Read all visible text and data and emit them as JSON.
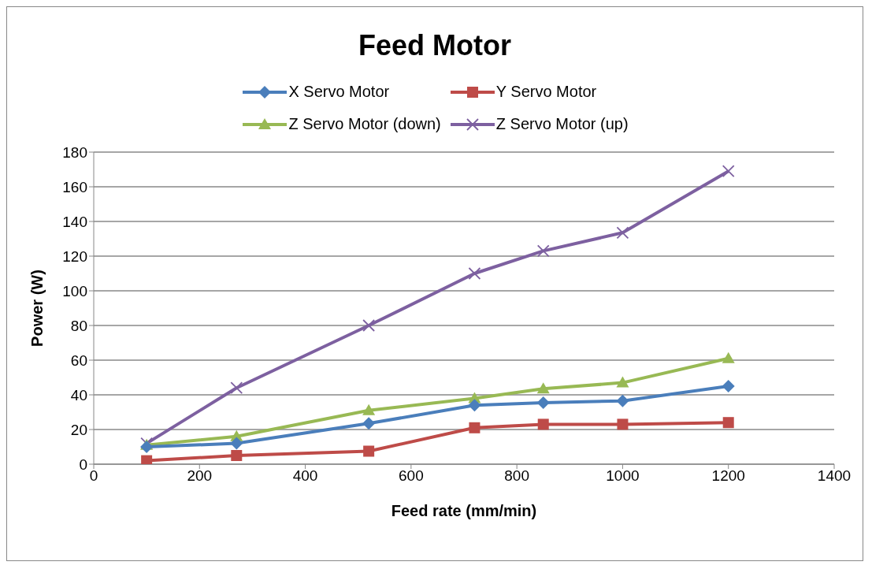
{
  "chart_data": {
    "type": "line",
    "title": "Feed Motor",
    "xlabel": "Feed rate (mm/min)",
    "ylabel": "Power (W)",
    "x": [
      100,
      270,
      520,
      720,
      850,
      1000,
      1200
    ],
    "series": [
      {
        "name": "X Servo Motor",
        "color": "#4a7ebb",
        "marker": "diamond",
        "values": [
          10,
          12,
          23.5,
          34,
          35.5,
          36.5,
          45
        ]
      },
      {
        "name": "Y Servo Motor",
        "color": "#be4b48",
        "marker": "square",
        "values": [
          2,
          5,
          7.5,
          21,
          23,
          23,
          24
        ]
      },
      {
        "name": "Z Servo Motor (down)",
        "color": "#98b954",
        "marker": "triangle",
        "values": [
          11,
          16,
          31,
          38,
          43.5,
          47,
          61
        ]
      },
      {
        "name": "Z Servo Motor (up)",
        "color": "#7d60a0",
        "marker": "cross",
        "values": [
          12,
          44,
          80,
          110,
          123,
          133.5,
          169
        ]
      }
    ],
    "xlim": [
      0,
      1400
    ],
    "xticks": [
      0,
      200,
      400,
      600,
      800,
      1000,
      1200,
      1400
    ],
    "ylim": [
      0,
      180
    ],
    "yticks": [
      0,
      20,
      40,
      60,
      80,
      100,
      120,
      140,
      160,
      180
    ],
    "grid": "y",
    "legend": "top",
    "line_style": "solid"
  }
}
